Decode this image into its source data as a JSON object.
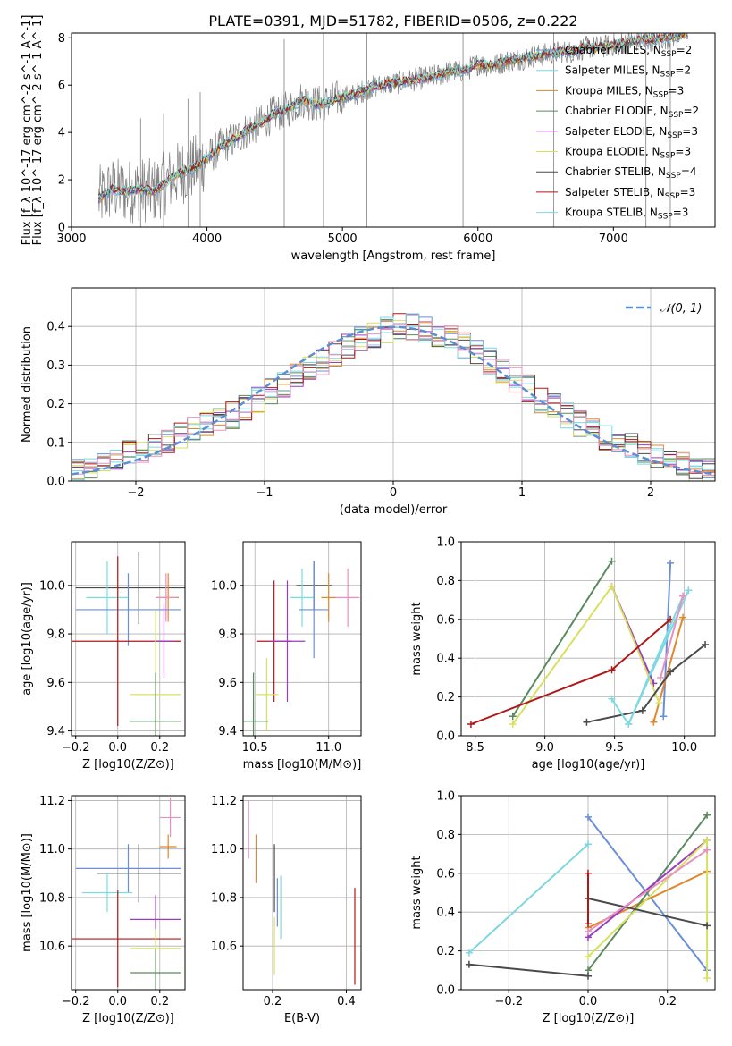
{
  "figure": {
    "title": "PLATE=0391, MJD=51782, FIBERID=0506, z=0.222"
  },
  "colors": {
    "chabrier_miles": "#6a8fd8",
    "salpeter_miles": "#7fd6e0",
    "kroupa_miles": "#e0882a",
    "chabrier_elodie": "#5a8a5e",
    "salpeter_elodie": "#9a3dc0",
    "kroupa_elodie": "#d8e060",
    "chabrier_stelib": "#4a4a4a",
    "salpeter_stelib": "#b01818",
    "kroupa_stelib": "#7adce0",
    "pink": "#e890c0",
    "data_grey": "#808080",
    "gauss": "#5b8fd4",
    "grid": "#b0b0b0"
  },
  "chart_data": [
    {
      "id": "spectrum",
      "type": "line",
      "xlabel": "wavelength [Angstrom, rest frame]",
      "ylabel": "Flux [f_λ 10^-17 erg cm^-2 s^-1 A^-1]",
      "xlim": [
        3000,
        7750
      ],
      "ylim": [
        0,
        8.2
      ],
      "xticks": [
        "3000",
        "4000",
        "5000",
        "6000",
        "7000"
      ],
      "yticks": [
        "0",
        "2",
        "4",
        "6",
        "8"
      ],
      "grid": false,
      "legend_position": "top-right",
      "legend": [
        {
          "label": "Chabrier MILES, N",
          "sub": "SSP",
          "tail": "=2",
          "color_key": "chabrier_miles"
        },
        {
          "label": "Salpeter MILES, N",
          "sub": "SSP",
          "tail": "=2",
          "color_key": "salpeter_miles"
        },
        {
          "label": "Kroupa MILES, N",
          "sub": "SSP",
          "tail": "=3",
          "color_key": "kroupa_miles"
        },
        {
          "label": "Chabrier ELODIE, N",
          "sub": "SSP",
          "tail": "=2",
          "color_key": "chabrier_elodie"
        },
        {
          "label": "Salpeter ELODIE, N",
          "sub": "SSP",
          "tail": "=3",
          "color_key": "salpeter_elodie"
        },
        {
          "label": "Kroupa ELODIE, N",
          "sub": "SSP",
          "tail": "=3",
          "color_key": "kroupa_elodie"
        },
        {
          "label": "Chabrier STELIB, N",
          "sub": "SSP",
          "tail": "=4",
          "color_key": "chabrier_stelib"
        },
        {
          "label": "Salpeter STELIB, N",
          "sub": "SSP",
          "tail": "=3",
          "color_key": "salpeter_stelib"
        },
        {
          "label": "Kroupa STELIB, N",
          "sub": "SSP",
          "tail": "=3",
          "color_key": "kroupa_stelib"
        }
      ],
      "model_curve": {
        "x": [
          3200,
          3300,
          3400,
          3500,
          3600,
          3700,
          3800,
          3900,
          4000,
          4100,
          4200,
          4300,
          4400,
          4500,
          4600,
          4700,
          4800,
          4900,
          5000,
          5100,
          5200,
          5300,
          5400,
          5500,
          5600,
          5700,
          5800,
          5900,
          6000,
          6100,
          6200,
          6300,
          6400,
          6500,
          6600,
          6700,
          6800,
          6900,
          7000,
          7100,
          7200,
          7300,
          7400,
          7550
        ],
        "y": [
          1.2,
          1.6,
          1.5,
          1.6,
          1.5,
          1.9,
          2.3,
          2.5,
          2.9,
          3.4,
          3.7,
          4.1,
          4.4,
          4.8,
          5.0,
          5.4,
          5.2,
          5.3,
          5.5,
          5.6,
          5.9,
          6.0,
          6.1,
          6.2,
          6.3,
          6.4,
          6.6,
          6.6,
          6.9,
          6.8,
          7.0,
          7.1,
          7.2,
          7.3,
          7.4,
          7.4,
          7.6,
          7.6,
          7.7,
          7.8,
          7.9,
          7.9,
          8.0,
          8.2
        ]
      }
    },
    {
      "id": "residuals",
      "type": "line",
      "xlabel": "(data-model)/error",
      "ylabel": "Normed distribution",
      "xlim": [
        -2.5,
        2.5
      ],
      "ylim": [
        0,
        0.5
      ],
      "xticks": [
        "−2",
        "−1",
        "0",
        "1",
        "2"
      ],
      "yticks": [
        "0.0",
        "0.1",
        "0.2",
        "0.3",
        "0.4"
      ],
      "grid": true,
      "legend_position": "top-right",
      "legend_label": "𝒩(0, 1)",
      "bin_width": 0.1,
      "bin_start": -2.5,
      "envelope": [
        0.03,
        0.04,
        0.05,
        0.06,
        0.07,
        0.08,
        0.09,
        0.1,
        0.12,
        0.14,
        0.15,
        0.16,
        0.17,
        0.19,
        0.21,
        0.23,
        0.25,
        0.27,
        0.29,
        0.31,
        0.33,
        0.35,
        0.37,
        0.38,
        0.39,
        0.4,
        0.4,
        0.39,
        0.38,
        0.37,
        0.35,
        0.33,
        0.31,
        0.28,
        0.26,
        0.24,
        0.21,
        0.19,
        0.17,
        0.15,
        0.13,
        0.11,
        0.1,
        0.09,
        0.07,
        0.06,
        0.05,
        0.04,
        0.03,
        0.03
      ]
    },
    {
      "id": "age_vs_Z",
      "type": "scatter",
      "xlabel": "Z [log10(Z/Z⊙)]",
      "ylabel": "age [log10(age/yr)]",
      "xlim": [
        -0.22,
        0.32
      ],
      "ylim": [
        9.38,
        10.18
      ],
      "xticks": [
        "−0.2",
        "0.0",
        "0.2"
      ],
      "yticks": [
        "9.4",
        "9.6",
        "9.8",
        "10.0"
      ],
      "grid": true,
      "points": [
        {
          "x": 0.1,
          "y": 9.99,
          "xerr": 0.3,
          "yerr": 0.15,
          "color_key": "chabrier_stelib"
        },
        {
          "x": -0.05,
          "y": 9.95,
          "xerr": 0.1,
          "yerr": 0.15,
          "color_key": "kroupa_stelib"
        },
        {
          "x": 0.24,
          "y": 9.95,
          "xerr": 0.05,
          "yerr": 0.1,
          "color_key": "kroupa_miles"
        },
        {
          "x": 0.23,
          "y": 9.95,
          "xerr": 0.05,
          "yerr": 0.1,
          "color_key": "pink"
        },
        {
          "x": 0.05,
          "y": 9.9,
          "xerr": 0.25,
          "yerr": 0.15,
          "color_key": "chabrier_miles"
        },
        {
          "x": 0.0,
          "y": 9.77,
          "xerr": 0.3,
          "yerr": 0.35,
          "color_key": "salpeter_stelib"
        },
        {
          "x": 0.22,
          "y": 9.77,
          "xerr": 0.05,
          "yerr": 0.15,
          "color_key": "salpeter_elodie"
        },
        {
          "x": 0.18,
          "y": 9.55,
          "xerr": 0.12,
          "yerr": 0.35,
          "color_key": "kroupa_elodie"
        },
        {
          "x": 0.18,
          "y": 9.44,
          "xerr": 0.12,
          "yerr": 0.2,
          "color_key": "chabrier_elodie"
        }
      ]
    },
    {
      "id": "age_vs_mass",
      "type": "scatter",
      "xlabel": "mass [log10(M/M⊙)]",
      "ylabel": "",
      "xlim": [
        10.42,
        11.22
      ],
      "ylim": [
        9.38,
        10.18
      ],
      "xticks": [
        "10.5",
        "11.0"
      ],
      "yticks": [
        "9.4",
        "9.6",
        "9.8",
        "10.0"
      ],
      "grid": true,
      "points": [
        {
          "x": 10.9,
          "y": 10.0,
          "xerr": 0.12,
          "yerr": 0.1,
          "color_key": "chabrier_stelib"
        },
        {
          "x": 10.82,
          "y": 9.95,
          "xerr": 0.08,
          "yerr": 0.12,
          "color_key": "kroupa_stelib"
        },
        {
          "x": 11.0,
          "y": 9.95,
          "xerr": 0.05,
          "yerr": 0.1,
          "color_key": "kroupa_miles"
        },
        {
          "x": 11.13,
          "y": 9.95,
          "xerr": 0.08,
          "yerr": 0.12,
          "color_key": "pink"
        },
        {
          "x": 10.9,
          "y": 9.9,
          "xerr": 0.1,
          "yerr": 0.2,
          "color_key": "chabrier_miles"
        },
        {
          "x": 10.63,
          "y": 9.77,
          "xerr": 0.12,
          "yerr": 0.25,
          "color_key": "salpeter_stelib"
        },
        {
          "x": 10.72,
          "y": 9.77,
          "xerr": 0.12,
          "yerr": 0.25,
          "color_key": "salpeter_elodie"
        },
        {
          "x": 10.58,
          "y": 9.55,
          "xerr": 0.08,
          "yerr": 0.15,
          "color_key": "kroupa_elodie"
        },
        {
          "x": 10.49,
          "y": 9.44,
          "xerr": 0.1,
          "yerr": 0.2,
          "color_key": "chabrier_elodie"
        }
      ]
    },
    {
      "id": "weight_vs_age",
      "type": "line",
      "xlabel": "age [log10(age/yr)]",
      "ylabel": "mass weight",
      "xlim": [
        8.4,
        10.22
      ],
      "ylim": [
        0,
        1.0
      ],
      "xticks": [
        "8.5",
        "9.0",
        "9.5",
        "10.0"
      ],
      "yticks": [
        "0.0",
        "0.2",
        "0.4",
        "0.6",
        "0.8",
        "1.0"
      ],
      "grid": true,
      "series": [
        {
          "color_key": "chabrier_miles",
          "x": [
            9.85,
            9.9
          ],
          "y": [
            0.1,
            0.89
          ]
        },
        {
          "color_key": "salpeter_miles",
          "x": [
            9.6,
            10.03
          ],
          "y": [
            0.06,
            0.75
          ]
        },
        {
          "color_key": "kroupa_miles",
          "x": [
            9.78,
            9.99
          ],
          "y": [
            0.07,
            0.61
          ]
        },
        {
          "color_key": "chabrier_elodie",
          "x": [
            8.77,
            9.48
          ],
          "y": [
            0.1,
            0.9
          ]
        },
        {
          "color_key": "salpeter_elodie",
          "x": [
            9.48,
            9.78
          ],
          "y": [
            0.77,
            0.27
          ]
        },
        {
          "color_key": "kroupa_elodie",
          "x": [
            8.77,
            9.48,
            9.82
          ],
          "y": [
            0.06,
            0.77,
            0.17
          ]
        },
        {
          "color_key": "chabrier_stelib",
          "x": [
            9.3,
            9.7,
            9.9,
            10.15
          ],
          "y": [
            0.07,
            0.13,
            0.33,
            0.47
          ]
        },
        {
          "color_key": "salpeter_stelib",
          "x": [
            8.47,
            9.48,
            9.9
          ],
          "y": [
            0.06,
            0.34,
            0.6
          ]
        },
        {
          "color_key": "kroupa_stelib",
          "x": [
            9.48,
            9.6,
            9.99
          ],
          "y": [
            0.19,
            0.06,
            0.72
          ]
        },
        {
          "color_key": "pink",
          "x": [
            9.83,
            9.99
          ],
          "y": [
            0.3,
            0.72
          ]
        }
      ]
    },
    {
      "id": "mass_vs_Z",
      "type": "scatter",
      "xlabel": "Z [log10(Z/Z⊙)]",
      "ylabel": "mass [log10(M/M⊙)]",
      "xlim": [
        -0.22,
        0.32
      ],
      "ylim": [
        10.42,
        11.22
      ],
      "xticks": [
        "−0.2",
        "0.0",
        "0.2"
      ],
      "yticks": [
        "10.6",
        "10.8",
        "11.0",
        "11.2"
      ],
      "grid": true,
      "points": [
        {
          "x": 0.25,
          "y": 11.13,
          "xerr": 0.05,
          "yerr": 0.08,
          "color_key": "pink"
        },
        {
          "x": 0.24,
          "y": 11.01,
          "xerr": 0.04,
          "yerr": 0.05,
          "color_key": "kroupa_miles"
        },
        {
          "x": 0.1,
          "y": 10.9,
          "xerr": 0.2,
          "yerr": 0.12,
          "color_key": "chabrier_stelib"
        },
        {
          "x": 0.05,
          "y": 10.92,
          "xerr": 0.25,
          "yerr": 0.1,
          "color_key": "chabrier_miles"
        },
        {
          "x": -0.05,
          "y": 10.82,
          "xerr": 0.12,
          "yerr": 0.08,
          "color_key": "kroupa_stelib"
        },
        {
          "x": 0.18,
          "y": 10.71,
          "xerr": 0.12,
          "yerr": 0.1,
          "color_key": "salpeter_elodie"
        },
        {
          "x": 0.0,
          "y": 10.63,
          "xerr": 0.3,
          "yerr": 0.2,
          "color_key": "salpeter_stelib"
        },
        {
          "x": 0.18,
          "y": 10.59,
          "xerr": 0.12,
          "yerr": 0.08,
          "color_key": "kroupa_elodie"
        },
        {
          "x": 0.18,
          "y": 10.49,
          "xerr": 0.12,
          "yerr": 0.1,
          "color_key": "chabrier_elodie"
        }
      ]
    },
    {
      "id": "mass_vs_ebv",
      "type": "scatter",
      "xlabel": "E(B-V)",
      "ylabel": "",
      "xlim": [
        0.12,
        0.44
      ],
      "ylim": [
        10.42,
        11.22
      ],
      "xticks": [
        "0.2",
        "0.4"
      ],
      "yticks": [
        "10.6",
        "10.8",
        "11.0",
        "11.2"
      ],
      "grid": true,
      "points": [
        {
          "x": 0.135,
          "y": 11.08,
          "xerr": 0,
          "yerr": 0.12,
          "color_key": "pink"
        },
        {
          "x": 0.155,
          "y": 10.96,
          "xerr": 0,
          "yerr": 0.1,
          "color_key": "kroupa_miles"
        },
        {
          "x": 0.205,
          "y": 10.88,
          "xerr": 0,
          "yerr": 0.14,
          "color_key": "chabrier_stelib"
        },
        {
          "x": 0.213,
          "y": 10.78,
          "xerr": 0,
          "yerr": 0.1,
          "color_key": "chabrier_miles"
        },
        {
          "x": 0.222,
          "y": 10.76,
          "xerr": 0,
          "yerr": 0.13,
          "color_key": "kroupa_stelib"
        },
        {
          "x": 0.205,
          "y": 10.6,
          "xerr": 0,
          "yerr": 0.12,
          "color_key": "kroupa_elodie"
        },
        {
          "x": 0.423,
          "y": 10.64,
          "xerr": 0,
          "yerr": 0.2,
          "color_key": "salpeter_stelib"
        }
      ]
    },
    {
      "id": "weight_vs_Z",
      "type": "line",
      "xlabel": "Z [log10(Z/Z⊙)]",
      "ylabel": "mass weight",
      "xlim": [
        -0.32,
        0.32
      ],
      "ylim": [
        0,
        1.0
      ],
      "xticks": [
        "−0.2",
        "0.0",
        "0.2"
      ],
      "yticks": [
        "0.0",
        "0.2",
        "0.4",
        "0.6",
        "0.8",
        "1.0"
      ],
      "grid": true,
      "series": [
        {
          "color_key": "chabrier_miles",
          "x": [
            0.0,
            0.3
          ],
          "y": [
            0.89,
            0.1
          ]
        },
        {
          "color_key": "salpeter_miles",
          "x": [
            -0.3,
            0.0
          ],
          "y": [
            0.19,
            0.75
          ]
        },
        {
          "color_key": "kroupa_miles",
          "x": [
            0.0,
            0.3
          ],
          "y": [
            0.32,
            0.61
          ]
        },
        {
          "color_key": "chabrier_elodie",
          "x": [
            0.0,
            0.3
          ],
          "y": [
            0.1,
            0.9
          ]
        },
        {
          "color_key": "salpeter_elodie",
          "x": [
            0.0,
            0.3
          ],
          "y": [
            0.27,
            0.77
          ]
        },
        {
          "color_key": "kroupa_elodie",
          "x": [
            0.0,
            0.3,
            0.3
          ],
          "y": [
            0.17,
            0.77,
            0.06
          ]
        },
        {
          "color_key": "chabrier_stelib",
          "x": [
            -0.3,
            0.0
          ],
          "y": [
            0.13,
            0.07
          ]
        },
        {
          "color_key": "chabrier_stelib",
          "x": [
            0.0,
            0.3
          ],
          "y": [
            0.47,
            0.33
          ]
        },
        {
          "color_key": "salpeter_stelib",
          "x": [
            0.0,
            0.0
          ],
          "y": [
            0.6,
            0.34
          ]
        },
        {
          "color_key": "pink",
          "x": [
            0.0,
            0.3
          ],
          "y": [
            0.3,
            0.72
          ]
        }
      ]
    }
  ]
}
